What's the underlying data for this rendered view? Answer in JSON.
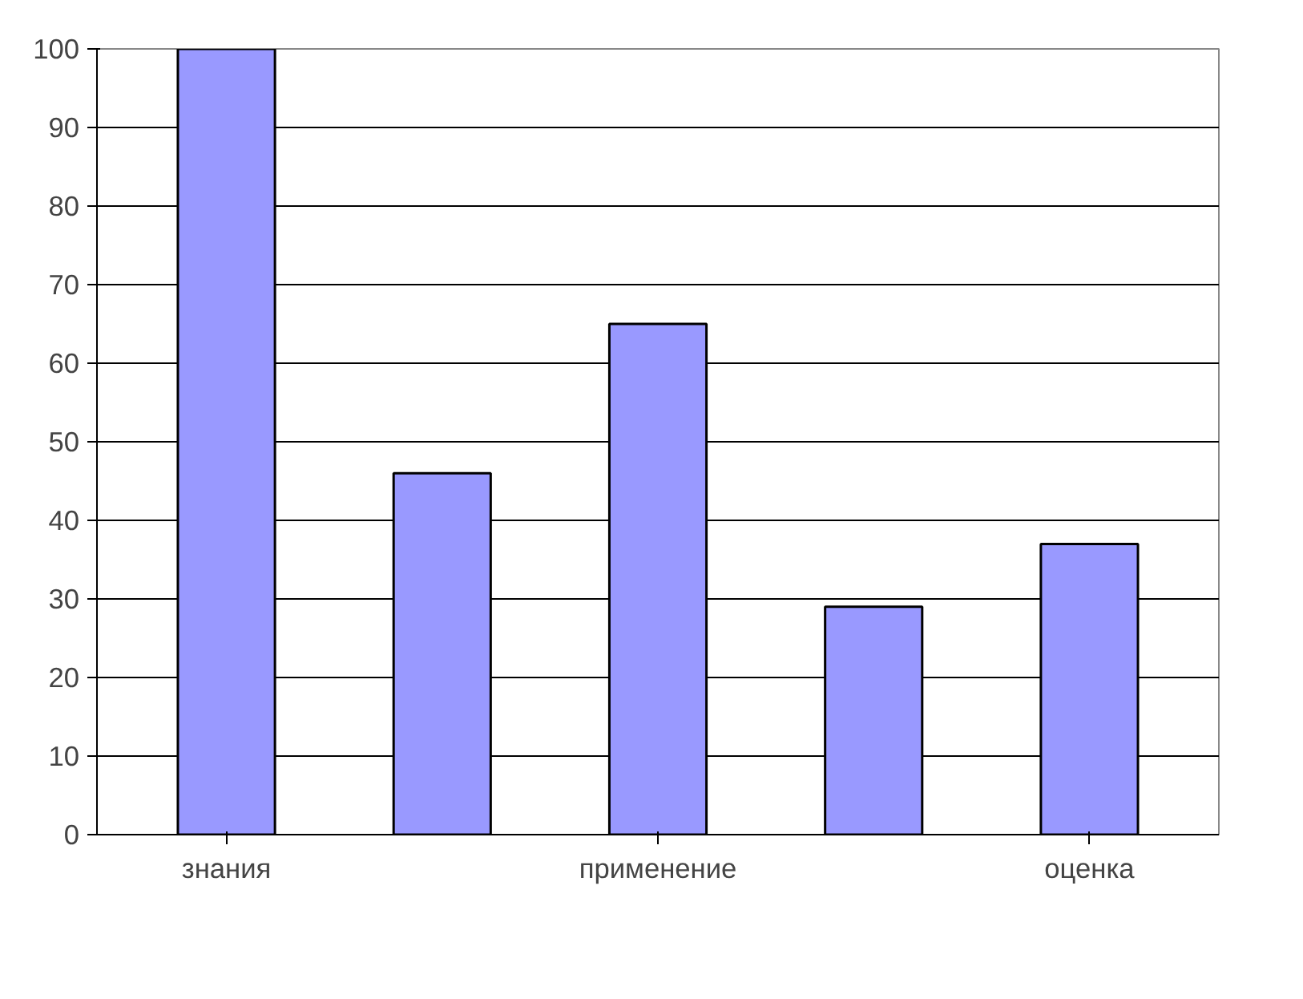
{
  "chart_data": {
    "type": "bar",
    "categories": [
      "знания",
      null,
      "применение",
      null,
      "оценка"
    ],
    "values": [
      100,
      46,
      65,
      29,
      37
    ],
    "color": "#9999ff",
    "ylim": [
      0,
      100
    ],
    "yticks": [
      0,
      10,
      20,
      30,
      40,
      50,
      60,
      70,
      80,
      90,
      100
    ],
    "grid": "y"
  }
}
